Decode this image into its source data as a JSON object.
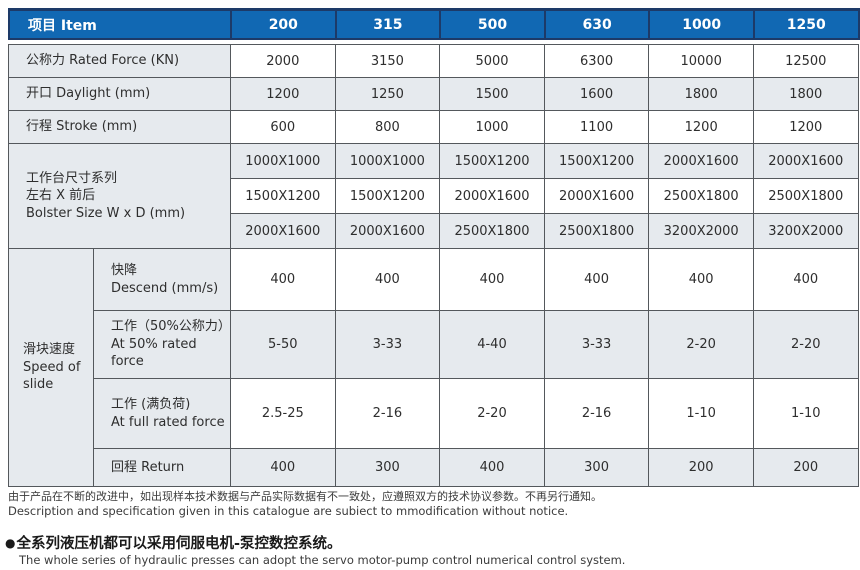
{
  "colors": {
    "header_blue": "#1168b3",
    "header_border_navy": "#1d3a68",
    "cell_gray": "#e6eaee",
    "border_gray": "#54585c"
  },
  "table": {
    "header": {
      "item_label": "项目 Item",
      "columns": [
        "200",
        "315",
        "500",
        "630",
        "1000",
        "1250"
      ]
    },
    "simple_rows": [
      {
        "label": "公称力 Rated Force (KN)",
        "values": [
          "2000",
          "3150",
          "5000",
          "6300",
          "10000",
          "12500"
        ]
      },
      {
        "label": "开口 Daylight  (mm)",
        "values": [
          "1200",
          "1250",
          "1500",
          "1600",
          "1800",
          "1800"
        ]
      },
      {
        "label": "行程 Stroke  (mm)",
        "values": [
          "600",
          "800",
          "1000",
          "1100",
          "1200",
          "1200"
        ]
      }
    ],
    "bolster": {
      "label_lines": [
        "工作台尺寸系列",
        "左右 X  前后",
        "Bolster Size W x D (mm)"
      ],
      "rows": [
        [
          "1000X1000",
          "1000X1000",
          "1500X1200",
          "1500X1200",
          "2000X1600",
          "2000X1600"
        ],
        [
          "1500X1200",
          "1500X1200",
          "2000X1600",
          "2000X1600",
          "2500X1800",
          "2500X1800"
        ],
        [
          "2000X1600",
          "2000X1600",
          "2500X1800",
          "2500X1800",
          "3200X2000",
          "3200X2000"
        ]
      ]
    },
    "speed": {
      "label_lines": [
        "滑块速度",
        "Speed of",
        "slide"
      ],
      "rows": [
        {
          "label_zh": "快降",
          "label_en": "Descend (mm/s)",
          "values": [
            "400",
            "400",
            "400",
            "400",
            "400",
            "400"
          ]
        },
        {
          "label_zh": "工作（50%公称力）",
          "label_en": "At 50% rated force",
          "values": [
            "5-50",
            "3-33",
            "4-40",
            "3-33",
            "2-20",
            "2-20"
          ]
        },
        {
          "label_zh": "工作 (满负荷)",
          "label_en": "At full rated force",
          "values": [
            "2.5-25",
            "2-16",
            "2-20",
            "2-16",
            "1-10",
            "1-10"
          ]
        },
        {
          "label_zh": "回程 Return",
          "label_en": "",
          "values": [
            "400",
            "300",
            "400",
            "300",
            "200",
            "200"
          ]
        }
      ]
    }
  },
  "footer": {
    "disclaimer_zh": "由于产品在不断的改进中，如出现样本技术数据与产品实际数据有不一致处，应遵照双方的技术协议参数。不再另行通知。",
    "disclaimer_en": "Description and specification given in this catalogue are subiect to mmodification without notice.",
    "bullet": "●",
    "note_zh": "全系列液压机都可以采用伺服电机-泵控数控系统。",
    "note_en": "The whole series of hydraulic presses can adopt the servo motor-pump control numerical control system."
  }
}
